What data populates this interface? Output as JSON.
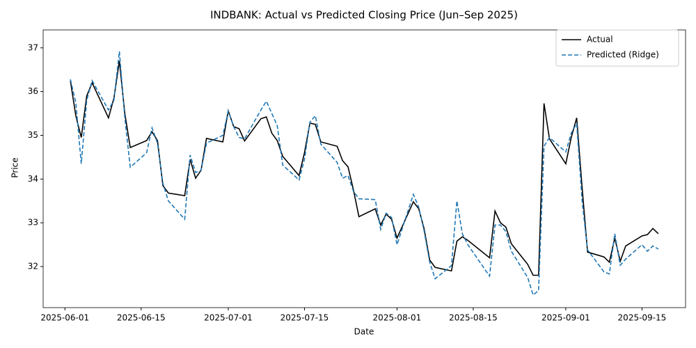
{
  "chart_data": {
    "type": "line",
    "title": "INDBANK: Actual vs Predicted Closing Price (Jun–Sep 2025)",
    "x_label": "Date",
    "y_label": "Price",
    "x": [
      "2025-06-02",
      "2025-06-03",
      "2025-06-04",
      "2025-06-05",
      "2025-06-06",
      "2025-06-09",
      "2025-06-10",
      "2025-06-11",
      "2025-06-12",
      "2025-06-13",
      "2025-06-16",
      "2025-06-17",
      "2025-06-18",
      "2025-06-19",
      "2025-06-20",
      "2025-06-23",
      "2025-06-24",
      "2025-06-25",
      "2025-06-26",
      "2025-06-27",
      "2025-06-30",
      "2025-07-01",
      "2025-07-02",
      "2025-07-03",
      "2025-07-04",
      "2025-07-07",
      "2025-07-08",
      "2025-07-09",
      "2025-07-10",
      "2025-07-11",
      "2025-07-14",
      "2025-07-15",
      "2025-07-16",
      "2025-07-17",
      "2025-07-18",
      "2025-07-21",
      "2025-07-22",
      "2025-07-23",
      "2025-07-24",
      "2025-07-25",
      "2025-07-28",
      "2025-07-29",
      "2025-07-30",
      "2025-07-31",
      "2025-08-01",
      "2025-08-04",
      "2025-08-05",
      "2025-08-06",
      "2025-08-07",
      "2025-08-08",
      "2025-08-11",
      "2025-08-12",
      "2025-08-13",
      "2025-08-14",
      "2025-08-18",
      "2025-08-19",
      "2025-08-20",
      "2025-08-21",
      "2025-08-22",
      "2025-08-25",
      "2025-08-26",
      "2025-08-27",
      "2025-08-28",
      "2025-08-29",
      "2025-09-01",
      "2025-09-02",
      "2025-09-03",
      "2025-09-04",
      "2025-09-05",
      "2025-09-08",
      "2025-09-09",
      "2025-09-10",
      "2025-09-11",
      "2025-09-12",
      "2025-09-15",
      "2025-09-16",
      "2025-09-17",
      "2025-09-18"
    ],
    "series": [
      {
        "name": "Actual",
        "color": "#000000",
        "linestyle": "solid",
        "values": [
          36.25,
          35.45,
          34.95,
          35.9,
          36.2,
          35.4,
          35.85,
          36.7,
          35.5,
          34.72,
          34.88,
          35.08,
          34.88,
          33.85,
          33.68,
          33.62,
          34.45,
          34.02,
          34.2,
          34.93,
          34.85,
          35.56,
          35.2,
          35.15,
          34.87,
          35.38,
          35.42,
          35.05,
          34.88,
          34.52,
          34.08,
          34.6,
          35.28,
          35.25,
          34.85,
          34.75,
          34.42,
          34.28,
          33.75,
          33.14,
          33.32,
          32.95,
          33.2,
          33.08,
          32.65,
          33.48,
          33.32,
          32.85,
          32.15,
          31.98,
          31.9,
          32.58,
          32.68,
          32.6,
          32.2,
          33.27,
          33.0,
          32.9,
          32.52,
          32.05,
          31.8,
          31.8,
          35.73,
          34.92,
          34.35,
          34.95,
          35.4,
          33.8,
          32.33,
          32.22,
          32.1,
          32.65,
          32.12,
          32.47,
          32.7,
          32.73,
          32.87,
          32.75
        ]
      },
      {
        "name": "Predicted (Ridge)",
        "color": "#1f77b4",
        "linestyle": "dashed",
        "values": [
          36.28,
          35.75,
          34.35,
          35.8,
          36.25,
          35.58,
          35.8,
          36.92,
          35.4,
          34.27,
          34.6,
          35.17,
          34.82,
          33.9,
          33.5,
          33.08,
          34.55,
          34.15,
          34.2,
          34.82,
          35.0,
          35.55,
          35.2,
          34.95,
          34.92,
          35.58,
          35.78,
          35.5,
          35.22,
          34.32,
          33.98,
          34.45,
          35.3,
          35.45,
          34.8,
          34.38,
          34.02,
          34.08,
          33.72,
          33.55,
          33.53,
          32.85,
          33.22,
          33.12,
          32.5,
          33.65,
          33.35,
          32.8,
          32.1,
          31.72,
          32.02,
          33.5,
          32.75,
          32.5,
          31.78,
          32.95,
          32.95,
          32.8,
          32.35,
          31.75,
          31.35,
          31.45,
          34.75,
          34.95,
          34.62,
          35.05,
          35.27,
          33.5,
          32.38,
          31.88,
          31.83,
          32.75,
          32.03,
          32.17,
          32.5,
          32.35,
          32.47,
          32.4
        ]
      }
    ],
    "xlim": [
      "2025-05-28",
      "2025-09-23"
    ],
    "xticks": [
      "2025-06-01",
      "2025-06-15",
      "2025-07-01",
      "2025-07-15",
      "2025-08-01",
      "2025-08-15",
      "2025-09-01",
      "2025-09-15"
    ],
    "ylim": [
      31.06,
      37.41
    ],
    "yticks": [
      32,
      33,
      34,
      35,
      36,
      37
    ],
    "legend": "upper right"
  }
}
